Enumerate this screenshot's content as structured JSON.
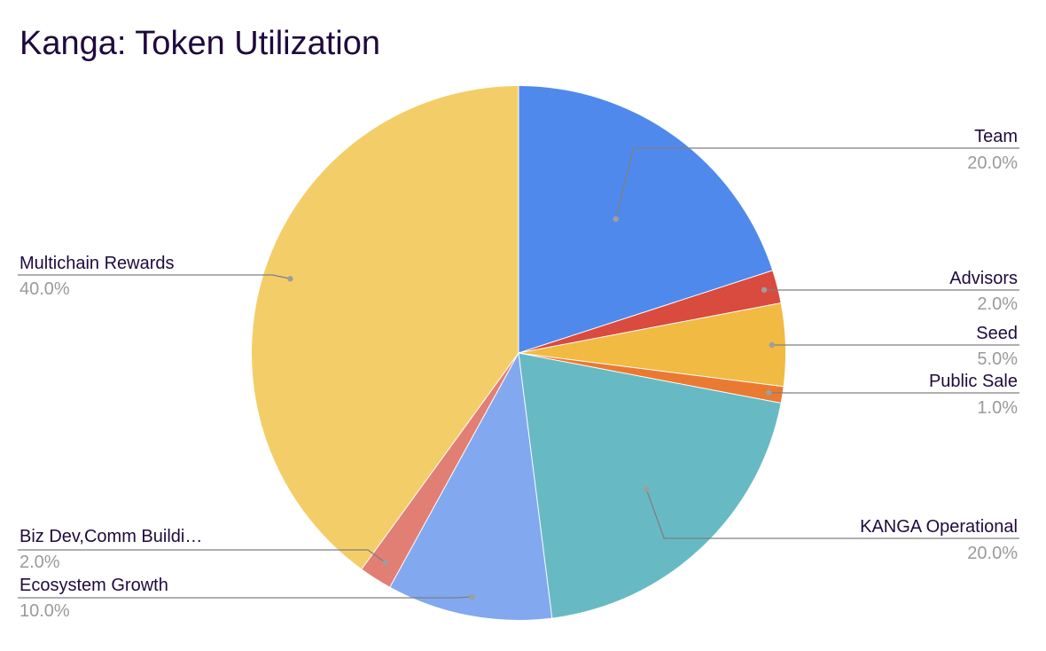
{
  "chart_data": {
    "type": "pie",
    "title": "Kanga: Token Utilization",
    "slices": [
      {
        "label": "Team",
        "value": 20.0,
        "percent_label": "20.0%",
        "color": "#5089ec"
      },
      {
        "label": "Advisors",
        "value": 2.0,
        "percent_label": "2.0%",
        "color": "#d84b3e"
      },
      {
        "label": "Seed",
        "value": 5.0,
        "percent_label": "5.0%",
        "color": "#f1ba42"
      },
      {
        "label": "Public Sale",
        "value": 1.0,
        "percent_label": "1.0%",
        "color": "#ea7a32"
      },
      {
        "label": "KANGA Operational",
        "value": 20.0,
        "percent_label": "20.0%",
        "color": "#67bac4"
      },
      {
        "label": "Ecosystem Growth",
        "value": 10.0,
        "percent_label": "10.0%",
        "color": "#82a9ef"
      },
      {
        "label": "Biz Dev,Comm Buildi…",
        "value": 2.0,
        "percent_label": "2.0%",
        "color": "#e17f74"
      },
      {
        "label": "Multichain Rewards",
        "value": 40.0,
        "percent_label": "40.0%",
        "color": "#f3ce68"
      }
    ],
    "legend": "callout labels"
  }
}
